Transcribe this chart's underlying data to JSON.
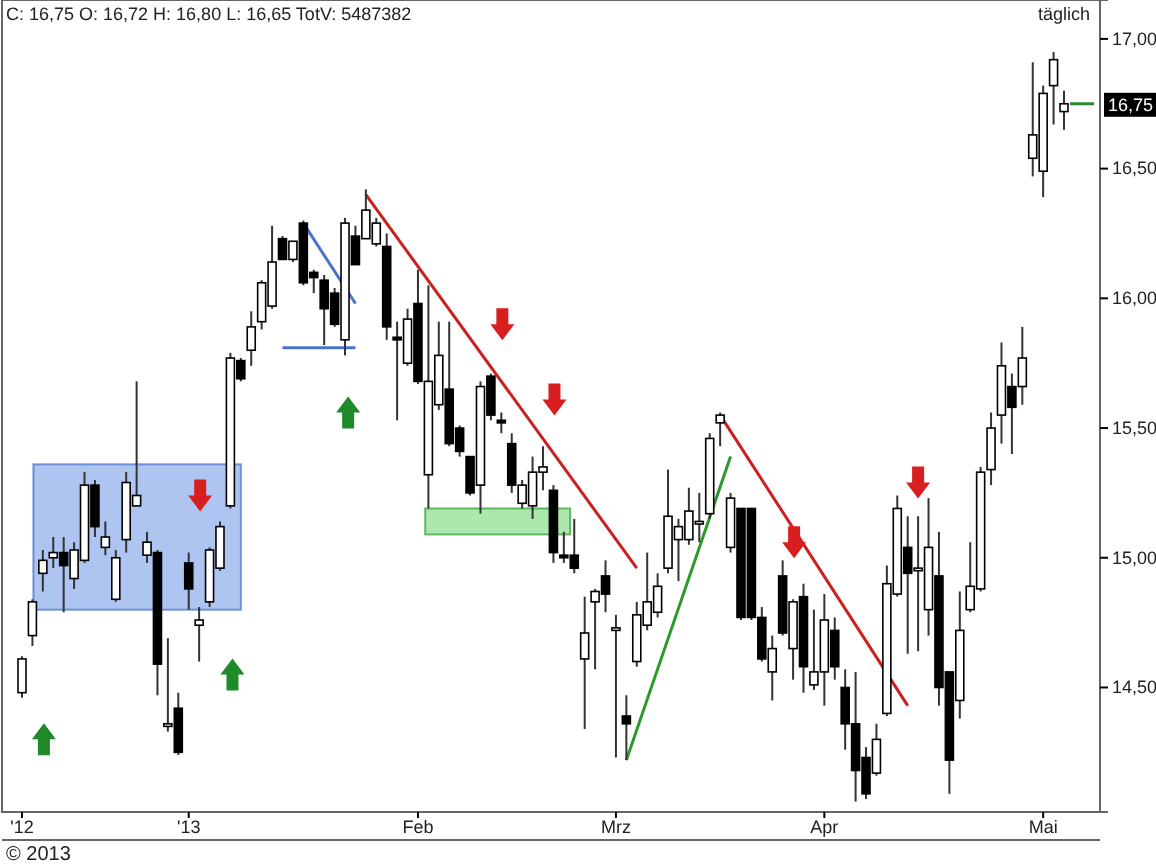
{
  "chart_data": {
    "type": "candlestick",
    "title": "C: 16,75 O: 16,72 H: 16,80 L: 16,65 TotV: 5487382",
    "subtitle": "täglich",
    "annotations": [
      "© 2013",
      "16,75"
    ],
    "categories": [
      "'12",
      null,
      null,
      null,
      null,
      null,
      null,
      null,
      null,
      null,
      null,
      null,
      null,
      null,
      null,
      null,
      "'13",
      null,
      null,
      null,
      null,
      null,
      null,
      null,
      null,
      null,
      null,
      null,
      null,
      null,
      null,
      null,
      null,
      null,
      null,
      null,
      null,
      null,
      "Feb",
      null,
      null,
      null,
      null,
      null,
      null,
      null,
      null,
      null,
      null,
      null,
      null,
      null,
      null,
      null,
      null,
      null,
      null,
      "Mrz",
      null,
      null,
      null,
      null,
      null,
      null,
      null,
      null,
      null,
      null,
      null,
      null,
      null,
      null,
      null,
      null,
      null,
      null,
      null,
      "Apr",
      null,
      null,
      null,
      null,
      null,
      null,
      null,
      null,
      null,
      null,
      null,
      null,
      null,
      null,
      null,
      null,
      null,
      null,
      null,
      null,
      "Mai",
      null,
      null
    ],
    "ohlc": [
      [
        14.48,
        14.62,
        14.46,
        14.61
      ],
      [
        14.7,
        14.84,
        14.66,
        14.83
      ],
      [
        14.94,
        15.03,
        14.87,
        14.99
      ],
      [
        15.0,
        15.08,
        14.96,
        15.02
      ],
      [
        15.02,
        15.08,
        14.79,
        14.97
      ],
      [
        14.92,
        15.06,
        14.88,
        15.03
      ],
      [
        14.99,
        15.33,
        14.98,
        15.28
      ],
      [
        15.28,
        15.3,
        15.08,
        15.12
      ],
      [
        15.04,
        15.14,
        15.01,
        15.08
      ],
      [
        14.84,
        15.03,
        14.83,
        15.0
      ],
      [
        15.07,
        15.33,
        15.02,
        15.29
      ],
      [
        15.2,
        15.68,
        15.2,
        15.24
      ],
      [
        15.01,
        15.1,
        14.98,
        15.06
      ],
      [
        15.02,
        15.03,
        14.47,
        14.59
      ],
      [
        14.35,
        14.69,
        14.33,
        14.36
      ],
      [
        14.42,
        14.48,
        14.24,
        14.25
      ],
      [
        14.98,
        15.02,
        14.8,
        14.88
      ],
      [
        14.74,
        14.81,
        14.6,
        14.76
      ],
      [
        14.83,
        15.04,
        14.81,
        15.03
      ],
      [
        14.96,
        15.14,
        14.95,
        15.12
      ],
      [
        15.2,
        15.79,
        15.19,
        15.77
      ],
      [
        15.76,
        15.77,
        15.68,
        15.69
      ],
      [
        15.8,
        15.95,
        15.74,
        15.89
      ],
      [
        15.91,
        16.07,
        15.88,
        16.06
      ],
      [
        15.97,
        16.28,
        15.96,
        16.14
      ],
      [
        16.23,
        16.24,
        16.15,
        16.15
      ],
      [
        16.15,
        16.22,
        16.14,
        16.22
      ],
      [
        16.29,
        16.3,
        16.05,
        16.06
      ],
      [
        16.1,
        16.11,
        16.02,
        16.08
      ],
      [
        16.07,
        16.09,
        15.82,
        15.96
      ],
      [
        16.02,
        16.04,
        15.89,
        15.9
      ],
      [
        15.84,
        16.31,
        15.78,
        16.29
      ],
      [
        16.24,
        16.28,
        16.13,
        16.13
      ],
      [
        16.23,
        16.42,
        16.23,
        16.34
      ],
      [
        16.21,
        16.31,
        16.2,
        16.29
      ],
      [
        16.2,
        16.25,
        15.84,
        15.89
      ],
      [
        15.85,
        15.91,
        15.53,
        15.84
      ],
      [
        15.75,
        15.96,
        15.74,
        15.92
      ],
      [
        15.98,
        16.11,
        15.67,
        15.68
      ],
      [
        15.32,
        16.05,
        15.19,
        15.68
      ],
      [
        15.59,
        15.91,
        15.57,
        15.78
      ],
      [
        15.65,
        15.91,
        15.43,
        15.44
      ],
      [
        15.5,
        15.51,
        15.39,
        15.41
      ],
      [
        15.39,
        15.39,
        15.24,
        15.25
      ],
      [
        15.28,
        15.68,
        15.17,
        15.66
      ],
      [
        15.7,
        15.71,
        15.53,
        15.55
      ],
      [
        15.53,
        15.56,
        15.48,
        15.52
      ],
      [
        15.44,
        15.48,
        15.25,
        15.28
      ],
      [
        15.21,
        15.3,
        15.19,
        15.28
      ],
      [
        15.2,
        15.39,
        15.15,
        15.33
      ],
      [
        15.33,
        15.43,
        15.26,
        15.35
      ],
      [
        15.26,
        15.28,
        14.98,
        15.02
      ],
      [
        15.01,
        15.1,
        14.98,
        15.0
      ],
      [
        15.01,
        15.15,
        14.94,
        14.96
      ],
      [
        14.61,
        14.85,
        14.34,
        14.71
      ],
      [
        14.83,
        14.88,
        14.57,
        14.87
      ],
      [
        14.93,
        14.99,
        14.79,
        14.86
      ],
      [
        14.72,
        14.78,
        14.23,
        14.73
      ],
      [
        14.39,
        14.47,
        14.22,
        14.36
      ],
      [
        14.6,
        14.83,
        14.58,
        14.78
      ],
      [
        14.74,
        15.02,
        14.72,
        14.83
      ],
      [
        14.79,
        14.94,
        14.77,
        14.89
      ],
      [
        14.96,
        15.34,
        14.94,
        15.16
      ],
      [
        15.07,
        15.15,
        14.91,
        15.12
      ],
      [
        15.07,
        15.27,
        15.05,
        15.18
      ],
      [
        15.13,
        15.25,
        15.06,
        15.14
      ],
      [
        15.17,
        15.48,
        15.15,
        15.46
      ],
      [
        15.52,
        15.56,
        15.43,
        15.55
      ],
      [
        15.04,
        15.25,
        15.02,
        15.23
      ],
      [
        15.19,
        15.19,
        14.76,
        14.77
      ],
      [
        15.19,
        15.19,
        14.76,
        14.77
      ],
      [
        14.77,
        14.81,
        14.6,
        14.61
      ],
      [
        14.56,
        14.7,
        14.45,
        14.65
      ],
      [
        14.93,
        14.99,
        14.7,
        14.71
      ],
      [
        14.65,
        14.84,
        14.53,
        14.83
      ],
      [
        14.85,
        14.9,
        14.48,
        14.58
      ],
      [
        14.51,
        14.8,
        14.49,
        14.56
      ],
      [
        14.56,
        14.86,
        14.43,
        14.76
      ],
      [
        14.72,
        14.77,
        14.53,
        14.58
      ],
      [
        14.5,
        14.57,
        14.26,
        14.36
      ],
      [
        14.36,
        14.56,
        14.06,
        14.18
      ],
      [
        14.23,
        14.27,
        14.07,
        14.09
      ],
      [
        14.17,
        14.36,
        14.16,
        14.3
      ],
      [
        14.4,
        14.97,
        14.39,
        14.9
      ],
      [
        14.86,
        15.24,
        14.85,
        15.19
      ],
      [
        15.04,
        15.16,
        14.63,
        14.94
      ],
      [
        14.95,
        15.16,
        14.64,
        14.96
      ],
      [
        14.8,
        15.23,
        14.7,
        15.04
      ],
      [
        14.93,
        15.1,
        14.43,
        14.5
      ],
      [
        14.56,
        14.56,
        14.09,
        14.22
      ],
      [
        14.45,
        14.87,
        14.38,
        14.72
      ],
      [
        14.8,
        15.06,
        14.79,
        14.89
      ],
      [
        14.88,
        15.35,
        14.87,
        15.33
      ],
      [
        15.34,
        15.56,
        15.28,
        15.5
      ],
      [
        15.55,
        15.83,
        15.44,
        15.74
      ],
      [
        15.66,
        15.71,
        15.4,
        15.58
      ],
      [
        15.66,
        15.89,
        15.59,
        15.77
      ],
      [
        16.54,
        16.91,
        16.47,
        16.63
      ],
      [
        16.49,
        16.82,
        16.39,
        16.79
      ],
      [
        16.82,
        16.95,
        16.67,
        16.92
      ],
      [
        16.72,
        16.8,
        16.65,
        16.75
      ]
    ],
    "series": [
      {
        "type": "line",
        "color": "#4a74c9",
        "values": [
          null,
          null,
          null,
          null,
          null,
          null,
          null,
          null,
          null,
          null,
          null,
          null,
          null,
          null,
          null,
          null,
          null,
          null,
          null,
          null,
          null,
          null,
          null,
          null,
          null,
          null,
          null,
          16.29,
          null,
          null,
          null,
          null,
          15.98,
          null,
          null,
          null,
          null,
          null,
          null,
          null,
          null,
          null,
          null,
          null,
          null,
          null,
          null,
          null,
          null,
          null,
          null,
          null,
          null,
          null,
          null,
          null,
          null,
          null,
          null,
          null,
          null,
          null,
          null,
          null,
          null,
          null,
          null,
          null,
          null,
          null,
          null,
          null,
          null,
          null,
          null,
          null,
          null,
          null,
          null,
          null,
          null,
          null,
          null,
          null,
          null,
          null,
          null,
          null,
          null,
          null,
          null,
          null,
          null,
          null,
          null,
          null,
          null,
          null,
          null,
          null,
          null
        ]
      },
      {
        "type": "line",
        "color": "#4a74c9",
        "values": [
          null,
          null,
          null,
          null,
          null,
          null,
          null,
          null,
          null,
          null,
          null,
          null,
          null,
          null,
          null,
          null,
          null,
          null,
          null,
          null,
          null,
          null,
          null,
          null,
          null,
          15.81,
          null,
          null,
          null,
          null,
          null,
          null,
          15.81,
          null,
          null,
          null,
          null,
          null,
          null,
          null,
          null,
          null,
          null,
          null,
          null,
          null,
          null,
          null,
          null,
          null,
          null,
          null,
          null,
          null,
          null,
          null,
          null,
          null,
          null,
          null,
          null,
          null,
          null,
          null,
          null,
          null,
          null,
          null,
          null,
          null,
          null,
          null,
          null,
          null,
          null,
          null,
          null,
          null,
          null,
          null,
          null,
          null,
          null,
          null,
          null,
          null,
          null,
          null,
          null,
          null,
          null,
          null,
          null,
          null,
          null,
          null,
          null,
          null,
          null,
          null,
          null
        ]
      },
      {
        "type": "line",
        "color": "#cc1f1f",
        "values": [
          null,
          null,
          null,
          null,
          null,
          null,
          null,
          null,
          null,
          null,
          null,
          null,
          null,
          null,
          null,
          null,
          null,
          null,
          null,
          null,
          null,
          null,
          null,
          null,
          null,
          null,
          null,
          null,
          null,
          null,
          null,
          null,
          null,
          16.4,
          null,
          null,
          null,
          null,
          null,
          null,
          null,
          null,
          null,
          null,
          null,
          null,
          null,
          null,
          null,
          null,
          null,
          null,
          null,
          null,
          null,
          null,
          null,
          null,
          null,
          14.96,
          null,
          null,
          null,
          null,
          null,
          null,
          null,
          null,
          null,
          null,
          null,
          null,
          null,
          null,
          null,
          null,
          null,
          null,
          null,
          null,
          null,
          null,
          null,
          null,
          null,
          null,
          null,
          null,
          null,
          null,
          null,
          null,
          null,
          null,
          null,
          null,
          null,
          null,
          null,
          null,
          null
        ]
      },
      {
        "type": "line",
        "color": "#2a9a2a",
        "values": [
          null,
          null,
          null,
          null,
          null,
          null,
          null,
          null,
          null,
          null,
          null,
          null,
          null,
          null,
          null,
          null,
          null,
          null,
          null,
          null,
          null,
          null,
          null,
          null,
          null,
          null,
          null,
          null,
          null,
          null,
          null,
          null,
          null,
          null,
          null,
          null,
          null,
          null,
          null,
          null,
          null,
          null,
          null,
          null,
          null,
          null,
          null,
          null,
          null,
          null,
          null,
          null,
          null,
          null,
          null,
          null,
          null,
          null,
          14.22,
          null,
          null,
          null,
          null,
          null,
          null,
          null,
          null,
          null,
          15.39,
          null,
          null,
          null,
          null,
          null,
          null,
          null,
          null,
          null,
          null,
          null,
          null,
          null,
          null,
          null,
          null,
          null,
          null,
          null,
          null,
          null,
          null,
          null,
          null,
          null,
          null,
          null,
          null,
          null,
          null,
          null,
          null
        ]
      },
      {
        "type": "line",
        "color": "#cc1f1f",
        "values": [
          null,
          null,
          null,
          null,
          null,
          null,
          null,
          null,
          null,
          null,
          null,
          null,
          null,
          null,
          null,
          null,
          null,
          null,
          null,
          null,
          null,
          null,
          null,
          null,
          null,
          null,
          null,
          null,
          null,
          null,
          null,
          null,
          null,
          null,
          null,
          null,
          null,
          null,
          null,
          null,
          null,
          null,
          null,
          null,
          null,
          null,
          null,
          null,
          null,
          null,
          null,
          null,
          null,
          null,
          null,
          null,
          null,
          null,
          null,
          null,
          null,
          null,
          null,
          null,
          null,
          null,
          null,
          15.55,
          null,
          null,
          null,
          null,
          null,
          null,
          null,
          null,
          null,
          null,
          null,
          null,
          null,
          null,
          null,
          null,
          null,
          14.43,
          null,
          null,
          null,
          null,
          null,
          null,
          null,
          null,
          null,
          null,
          null,
          null,
          null,
          null,
          null
        ]
      }
    ],
    "ylim": [
      14.02,
      17.15
    ],
    "yticks": [
      {
        "value": 14.5,
        "label": "14,50"
      },
      {
        "value": 15.0,
        "label": "15,00"
      },
      {
        "value": 15.5,
        "label": "15,50"
      },
      {
        "value": 16.0,
        "label": "16,00"
      },
      {
        "value": 16.5,
        "label": "16,50"
      },
      {
        "value": 17.0,
        "label": "17,00"
      }
    ],
    "line_style": "solid"
  }
}
